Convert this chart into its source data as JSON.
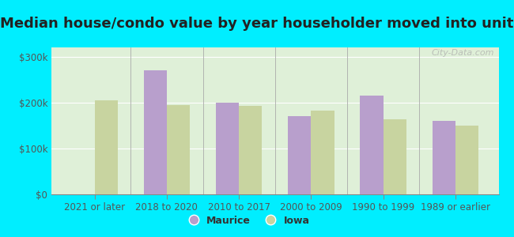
{
  "title": "Median house/condo value by year householder moved into unit",
  "categories": [
    "2021 or later",
    "2018 to 2020",
    "2010 to 2017",
    "2000 to 2009",
    "1990 to 1999",
    "1989 or earlier"
  ],
  "maurice_values": [
    0,
    270000,
    200000,
    170000,
    215000,
    160000
  ],
  "iowa_values": [
    205000,
    195000,
    193000,
    183000,
    163000,
    150000
  ],
  "maurice_color": "#b89fcc",
  "iowa_color": "#c8d4a0",
  "background_outer": "#00eeff",
  "background_inner_left": "#c8eec0",
  "background_inner_right": "#f0f8f0",
  "ylim": [
    0,
    320000
  ],
  "yticks": [
    0,
    100000,
    200000,
    300000
  ],
  "ytick_labels": [
    "$0",
    "$100k",
    "$200k",
    "$300k"
  ],
  "legend_labels": [
    "Maurice",
    "Iowa"
  ],
  "watermark": "City-Data.com",
  "title_fontsize": 13,
  "tick_fontsize": 8.5
}
